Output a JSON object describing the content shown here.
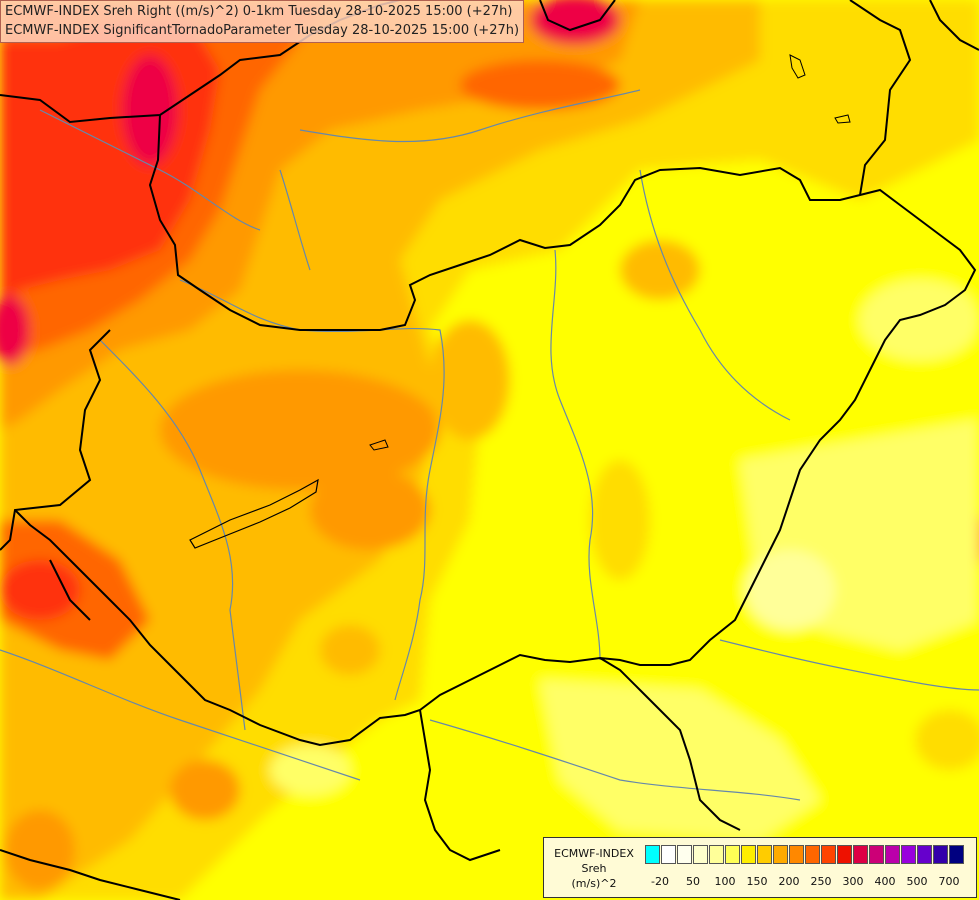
{
  "title": {
    "line1": "ECMWF-INDEX Sreh Right ((m/s)^2) 0-1km Tuesday 28-10-2025 15:00 (+27h)",
    "line2": "ECMWF-INDEX SignificantTornadoParameter Tuesday 28-10-2025 15:00 (+27h)"
  },
  "legend": {
    "line1": "ECMWF-INDEX",
    "line2": "Sreh",
    "line3": "(m/s)^2",
    "colors": [
      "#00ffff",
      "#ffffff",
      "#ffffee",
      "#ffffcc",
      "#ffff99",
      "#ffff55",
      "#ffee00",
      "#ffcc00",
      "#ffaa00",
      "#ff8800",
      "#ff6600",
      "#ff4400",
      "#ee1100",
      "#dd0044",
      "#cc0077",
      "#bb00aa",
      "#9900dd",
      "#6600cc",
      "#3300aa",
      "#000080"
    ],
    "tick_labels": [
      "-20",
      "50",
      "100",
      "150",
      "200",
      "250",
      "300",
      "400",
      "500",
      "700"
    ]
  },
  "map_colors": {
    "background": "#ffff00",
    "pale_yellow": "#ffff66",
    "gold": "#ffdd00",
    "orange_light": "#ffbb00",
    "orange": "#ff9900",
    "orange_red": "#ff6600",
    "red": "#ff3311",
    "crimson": "#ee0044",
    "cream": "#ffff99",
    "border": "#000000",
    "river": "#6688aa"
  }
}
